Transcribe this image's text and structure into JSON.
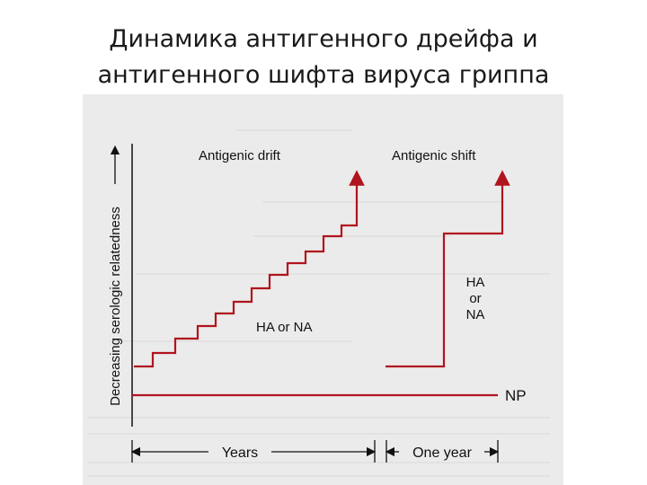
{
  "title": {
    "line1": "Динамика антигенного дрейфа и",
    "line2": "антигенного шифта вируса гриппа"
  },
  "figure": {
    "y_axis_label": "Decreasing serologic relatedness",
    "drift_label": "Antigenic drift",
    "shift_label": "Antigenic shift",
    "drift_segment_label": "HA or NA",
    "shift_segment_label": [
      "HA",
      "or",
      "NA"
    ],
    "np_label": "NP",
    "x_left_label": "Years",
    "x_right_label": "One year",
    "line_color": "#b0141e"
  }
}
